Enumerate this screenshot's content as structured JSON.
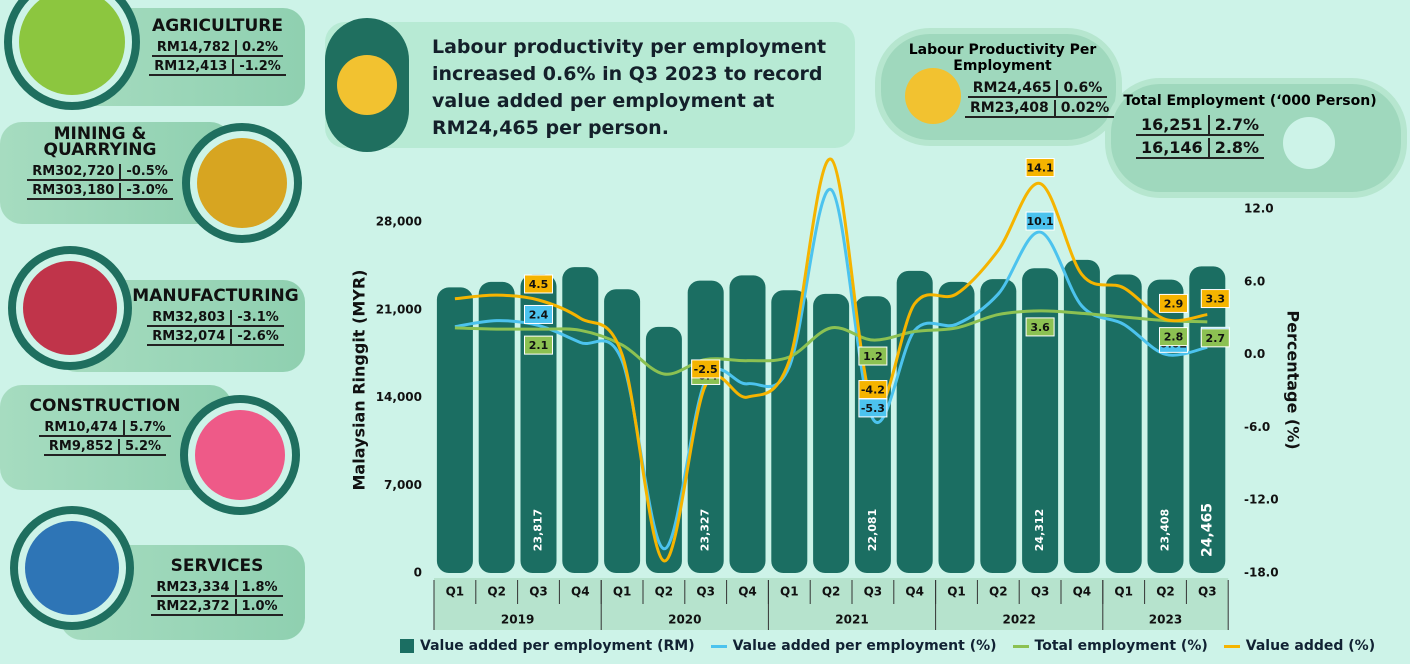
{
  "sectors": [
    {
      "name": "AGRICULTURE",
      "rows": [
        [
          "RM14,782",
          "0.2%"
        ],
        [
          "RM12,413",
          "-1.2%"
        ]
      ]
    },
    {
      "name": "MINING & QUARRYING",
      "rows": [
        [
          "RM302,720",
          "-0.5%"
        ],
        [
          "RM303,180",
          "-3.0%"
        ]
      ]
    },
    {
      "name": "MANUFACTURING",
      "rows": [
        [
          "RM32,803",
          "-3.1%"
        ],
        [
          "RM32,074",
          "-2.6%"
        ]
      ]
    },
    {
      "name": "CONSTRUCTION",
      "rows": [
        [
          "RM10,474",
          "5.7%"
        ],
        [
          "RM9,852",
          "5.2%"
        ]
      ]
    },
    {
      "name": "SERVICES",
      "rows": [
        [
          "RM23,334",
          "1.8%"
        ],
        [
          "RM22,372",
          "1.0%"
        ]
      ]
    }
  ],
  "headline": "Labour productivity per employment increased 0.6% in Q3 2023 to record value added per employment at RM24,465 per person.",
  "stats": [
    {
      "title": "Labour Productivity Per Employment",
      "rows": [
        [
          "RM24,465",
          "0.6%"
        ],
        [
          "RM23,408",
          "0.02%"
        ]
      ]
    },
    {
      "title": "Total Employment (‘000 Person)",
      "rows": [
        [
          "16,251",
          "2.7%"
        ],
        [
          "16,146",
          "2.8%"
        ]
      ]
    }
  ],
  "chart_data": {
    "type": "bar",
    "groups": [
      {
        "name": "2019",
        "categories": [
          "Q1",
          "Q2",
          "Q3",
          "Q4"
        ]
      },
      {
        "name": "2020",
        "categories": [
          "Q1",
          "Q2",
          "Q3",
          "Q4"
        ]
      },
      {
        "name": "2021",
        "categories": [
          "Q1",
          "Q2",
          "Q3",
          "Q4"
        ]
      },
      {
        "name": "2022",
        "categories": [
          "Q1",
          "Q2",
          "Q3",
          "Q4"
        ]
      },
      {
        "name": "2023",
        "categories": [
          "Q1",
          "Q2",
          "Q3"
        ]
      }
    ],
    "y_label": "Malaysian Ringgit (MYR)",
    "y2_label": "Percentage (%)",
    "ylim": [
      0,
      28000
    ],
    "yticks": [
      0,
      {
        "value": 7000,
        "label": "7,000"
      },
      {
        "value": 14000,
        "label": "14,000"
      },
      {
        "value": 21000,
        "label": "21,000"
      },
      {
        "value": 28000,
        "label": "28,000"
      }
    ],
    "y2lim": [
      -18,
      12
    ],
    "y2ticks": [
      {
        "value": -18,
        "label": "-18.0"
      },
      {
        "value": -12,
        "label": "-12.0"
      },
      {
        "value": -6,
        "label": "-6.0"
      },
      {
        "value": 0,
        "label": "0.0"
      },
      {
        "value": 6,
        "label": "6.0"
      },
      {
        "value": 12,
        "label": "12.0"
      }
    ],
    "series": [
      {
        "name": "Value added per employment (RM)",
        "type": "bar",
        "color": "#1b6e62",
        "values": [
          22780,
          23220,
          23817,
          24400,
          22640,
          19630,
          23327,
          23740,
          22560,
          22270,
          22081,
          24100,
          23220,
          23440,
          24312,
          24980,
          23810,
          23408,
          24465
        ],
        "value_labels": [
          null,
          null,
          "23,817",
          null,
          null,
          null,
          "23,327",
          null,
          null,
          null,
          "22,081",
          null,
          null,
          null,
          "24,312",
          null,
          null,
          "23,408",
          "24,465"
        ]
      },
      {
        "name": "Value added per employment (%)",
        "type": "line",
        "axis": "y2",
        "color": "#4cc3ee",
        "values": [
          2.3,
          2.8,
          2.4,
          1.0,
          -0.5,
          -16.0,
          -2.1,
          -2.4,
          -1.0,
          13.6,
          -5.3,
          2.0,
          2.5,
          5.0,
          10.1,
          4.0,
          2.5,
          0.02,
          0.6
        ],
        "value_labels": [
          null,
          null,
          "2.4",
          null,
          null,
          null,
          "-2.1",
          null,
          null,
          null,
          "-5.3",
          null,
          null,
          null,
          "10.1",
          null,
          null,
          "0.02",
          "0.6"
        ]
      },
      {
        "name": "Total employment (%)",
        "type": "line",
        "axis": "y2",
        "color": "#8cc152",
        "values": [
          2.2,
          2.1,
          2.1,
          2.0,
          0.8,
          -1.6,
          -0.4,
          -0.5,
          -0.2,
          2.2,
          1.2,
          1.9,
          2.2,
          3.3,
          3.6,
          3.4,
          3.1,
          2.8,
          2.7
        ],
        "value_labels": [
          null,
          null,
          "2.1",
          null,
          null,
          null,
          "-0.4",
          null,
          null,
          null,
          "1.2",
          null,
          null,
          null,
          "3.6",
          null,
          null,
          "2.8",
          "2.7"
        ]
      },
      {
        "name": "Value added (%)",
        "type": "line",
        "axis": "y2",
        "color": "#f5b400",
        "values": [
          4.6,
          4.9,
          4.5,
          3.0,
          0.0,
          -17.0,
          -2.5,
          -3.5,
          -0.5,
          16.1,
          -4.2,
          4.2,
          5.0,
          8.6,
          14.1,
          6.6,
          5.5,
          2.9,
          3.3
        ],
        "value_labels": [
          null,
          null,
          "4.5",
          null,
          null,
          null,
          "-2.5",
          null,
          null,
          null,
          "-4.2",
          null,
          null,
          null,
          "14.1",
          null,
          null,
          "2.9",
          "3.3"
        ]
      }
    ]
  }
}
